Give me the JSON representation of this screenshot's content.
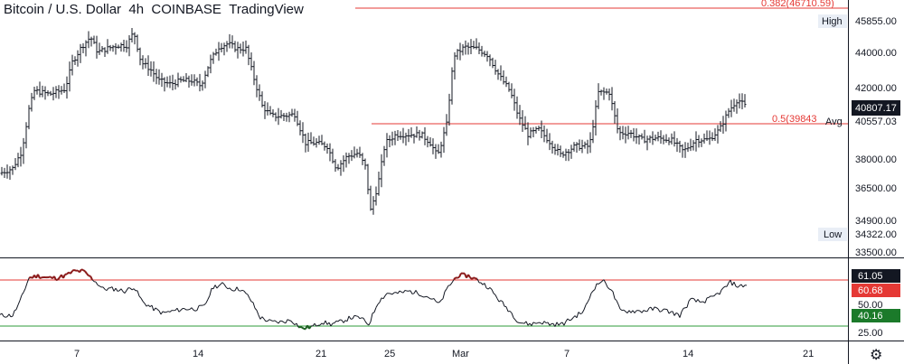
{
  "header": {
    "title": "Bitcoin / U.S. Dollar",
    "interval": "4h",
    "exchange": "COINBASE",
    "provider": "TradingView"
  },
  "colors": {
    "candle": "#131722",
    "fib_line": "#e53935",
    "overbought_line": "#e53935",
    "oversold_line": "#2e9b3a",
    "rsi_line": "#131722",
    "rsi_high_segment": "#8b1a1a",
    "rsi_low_segment": "#1b5e20",
    "label_dark": "#131722",
    "label_red": "#e53935",
    "label_green": "#1b7a2a",
    "label_light": "#e9eef6"
  },
  "price_axis": {
    "ticks": [
      "44000.00",
      "42000.00",
      "38000.00",
      "36500.00",
      "34900.00",
      "33500.00"
    ],
    "high_label": "High",
    "high_value": "45855.00",
    "low_label": "Low",
    "low_value": "34322.00",
    "last_value": "40807.17",
    "avg_label": "Avg",
    "avg_value": "40557.03"
  },
  "fib_levels": [
    {
      "label": "0.382(46710.59)",
      "price": 46710.59
    },
    {
      "label": "0.5(39843",
      "price": 39843
    }
  ],
  "rsi_axis": {
    "ticks": [
      "50.00",
      "25.00"
    ],
    "upper_band": "61.05",
    "current": "60.68",
    "mid": "50.00",
    "lower_band": "40.16"
  },
  "time_axis": {
    "labels": [
      "7",
      "14",
      "21",
      "25",
      "Mar",
      "7",
      "14",
      "21"
    ]
  },
  "chart_data": {
    "type": "ohlc",
    "symbol": "Bitcoin / U.S. Dollar",
    "interval": "4h",
    "price_range": [
      33200,
      46900
    ],
    "close_path": [
      {
        "x": 0,
        "y": 36900
      },
      {
        "x": 14,
        "y": 37200
      },
      {
        "x": 24,
        "y": 38200
      },
      {
        "x": 32,
        "y": 40700
      },
      {
        "x": 38,
        "y": 41800
      },
      {
        "x": 55,
        "y": 41600
      },
      {
        "x": 72,
        "y": 41900
      },
      {
        "x": 80,
        "y": 43500
      },
      {
        "x": 90,
        "y": 44400
      },
      {
        "x": 100,
        "y": 45000
      },
      {
        "x": 108,
        "y": 44100
      },
      {
        "x": 118,
        "y": 44300
      },
      {
        "x": 130,
        "y": 44500
      },
      {
        "x": 140,
        "y": 44500
      },
      {
        "x": 148,
        "y": 45300
      },
      {
        "x": 156,
        "y": 43500
      },
      {
        "x": 166,
        "y": 43100
      },
      {
        "x": 176,
        "y": 42400
      },
      {
        "x": 188,
        "y": 42200
      },
      {
        "x": 200,
        "y": 42400
      },
      {
        "x": 212,
        "y": 42400
      },
      {
        "x": 222,
        "y": 42100
      },
      {
        "x": 232,
        "y": 43500
      },
      {
        "x": 242,
        "y": 44400
      },
      {
        "x": 252,
        "y": 44600
      },
      {
        "x": 262,
        "y": 44300
      },
      {
        "x": 272,
        "y": 44300
      },
      {
        "x": 280,
        "y": 42700
      },
      {
        "x": 290,
        "y": 40900
      },
      {
        "x": 300,
        "y": 40300
      },
      {
        "x": 312,
        "y": 40300
      },
      {
        "x": 326,
        "y": 40400
      },
      {
        "x": 338,
        "y": 38700
      },
      {
        "x": 350,
        "y": 38700
      },
      {
        "x": 362,
        "y": 38500
      },
      {
        "x": 372,
        "y": 37200
      },
      {
        "x": 384,
        "y": 37900
      },
      {
        "x": 396,
        "y": 38100
      },
      {
        "x": 404,
        "y": 37300
      },
      {
        "x": 410,
        "y": 34700
      },
      {
        "x": 418,
        "y": 36200
      },
      {
        "x": 426,
        "y": 38700
      },
      {
        "x": 438,
        "y": 39200
      },
      {
        "x": 452,
        "y": 39200
      },
      {
        "x": 466,
        "y": 39200
      },
      {
        "x": 476,
        "y": 38700
      },
      {
        "x": 484,
        "y": 37900
      },
      {
        "x": 494,
        "y": 39800
      },
      {
        "x": 502,
        "y": 43900
      },
      {
        "x": 514,
        "y": 44400
      },
      {
        "x": 528,
        "y": 44300
      },
      {
        "x": 540,
        "y": 43900
      },
      {
        "x": 552,
        "y": 42700
      },
      {
        "x": 564,
        "y": 41800
      },
      {
        "x": 574,
        "y": 40200
      },
      {
        "x": 584,
        "y": 39200
      },
      {
        "x": 596,
        "y": 39500
      },
      {
        "x": 606,
        "y": 38900
      },
      {
        "x": 620,
        "y": 38000
      },
      {
        "x": 636,
        "y": 38500
      },
      {
        "x": 652,
        "y": 38500
      },
      {
        "x": 662,
        "y": 41700
      },
      {
        "x": 674,
        "y": 41700
      },
      {
        "x": 684,
        "y": 39300
      },
      {
        "x": 696,
        "y": 39300
      },
      {
        "x": 710,
        "y": 38900
      },
      {
        "x": 726,
        "y": 39000
      },
      {
        "x": 742,
        "y": 38900
      },
      {
        "x": 756,
        "y": 38200
      },
      {
        "x": 770,
        "y": 38900
      },
      {
        "x": 784,
        "y": 38900
      },
      {
        "x": 796,
        "y": 39500
      },
      {
        "x": 806,
        "y": 40600
      },
      {
        "x": 816,
        "y": 41300
      },
      {
        "x": 826,
        "y": 40800
      }
    ],
    "rsi_path": [
      {
        "x": 0,
        "y": 45
      },
      {
        "x": 14,
        "y": 45
      },
      {
        "x": 22,
        "y": 51
      },
      {
        "x": 32,
        "y": 62
      },
      {
        "x": 42,
        "y": 63
      },
      {
        "x": 52,
        "y": 62
      },
      {
        "x": 62,
        "y": 62
      },
      {
        "x": 72,
        "y": 63
      },
      {
        "x": 82,
        "y": 65
      },
      {
        "x": 92,
        "y": 65
      },
      {
        "x": 104,
        "y": 61
      },
      {
        "x": 114,
        "y": 57
      },
      {
        "x": 126,
        "y": 57
      },
      {
        "x": 138,
        "y": 56
      },
      {
        "x": 148,
        "y": 58
      },
      {
        "x": 158,
        "y": 51
      },
      {
        "x": 170,
        "y": 48
      },
      {
        "x": 180,
        "y": 46
      },
      {
        "x": 192,
        "y": 47
      },
      {
        "x": 204,
        "y": 48
      },
      {
        "x": 216,
        "y": 48
      },
      {
        "x": 226,
        "y": 49
      },
      {
        "x": 236,
        "y": 58
      },
      {
        "x": 246,
        "y": 59
      },
      {
        "x": 256,
        "y": 57
      },
      {
        "x": 266,
        "y": 57
      },
      {
        "x": 276,
        "y": 53
      },
      {
        "x": 288,
        "y": 44
      },
      {
        "x": 300,
        "y": 42
      },
      {
        "x": 312,
        "y": 42
      },
      {
        "x": 322,
        "y": 43
      },
      {
        "x": 334,
        "y": 39
      },
      {
        "x": 346,
        "y": 40
      },
      {
        "x": 356,
        "y": 42
      },
      {
        "x": 366,
        "y": 41
      },
      {
        "x": 376,
        "y": 42
      },
      {
        "x": 388,
        "y": 44
      },
      {
        "x": 398,
        "y": 44
      },
      {
        "x": 408,
        "y": 41
      },
      {
        "x": 418,
        "y": 51
      },
      {
        "x": 428,
        "y": 55
      },
      {
        "x": 440,
        "y": 55
      },
      {
        "x": 452,
        "y": 56
      },
      {
        "x": 464,
        "y": 55
      },
      {
        "x": 476,
        "y": 53
      },
      {
        "x": 486,
        "y": 50
      },
      {
        "x": 496,
        "y": 58
      },
      {
        "x": 506,
        "y": 63
      },
      {
        "x": 518,
        "y": 63
      },
      {
        "x": 528,
        "y": 61
      },
      {
        "x": 540,
        "y": 58
      },
      {
        "x": 552,
        "y": 52
      },
      {
        "x": 564,
        "y": 47
      },
      {
        "x": 574,
        "y": 42
      },
      {
        "x": 586,
        "y": 41
      },
      {
        "x": 598,
        "y": 42
      },
      {
        "x": 610,
        "y": 41
      },
      {
        "x": 622,
        "y": 41
      },
      {
        "x": 634,
        "y": 44
      },
      {
        "x": 646,
        "y": 47
      },
      {
        "x": 656,
        "y": 57
      },
      {
        "x": 666,
        "y": 61
      },
      {
        "x": 676,
        "y": 57
      },
      {
        "x": 686,
        "y": 47
      },
      {
        "x": 698,
        "y": 47
      },
      {
        "x": 710,
        "y": 47
      },
      {
        "x": 724,
        "y": 48
      },
      {
        "x": 738,
        "y": 47
      },
      {
        "x": 752,
        "y": 45
      },
      {
        "x": 764,
        "y": 52
      },
      {
        "x": 776,
        "y": 51
      },
      {
        "x": 788,
        "y": 53
      },
      {
        "x": 798,
        "y": 56
      },
      {
        "x": 808,
        "y": 60
      },
      {
        "x": 818,
        "y": 58
      },
      {
        "x": 826,
        "y": 59
      }
    ],
    "rsi_range": [
      20,
      70
    ],
    "rsi_bands": {
      "upper": 61.05,
      "lower": 40.16
    }
  }
}
